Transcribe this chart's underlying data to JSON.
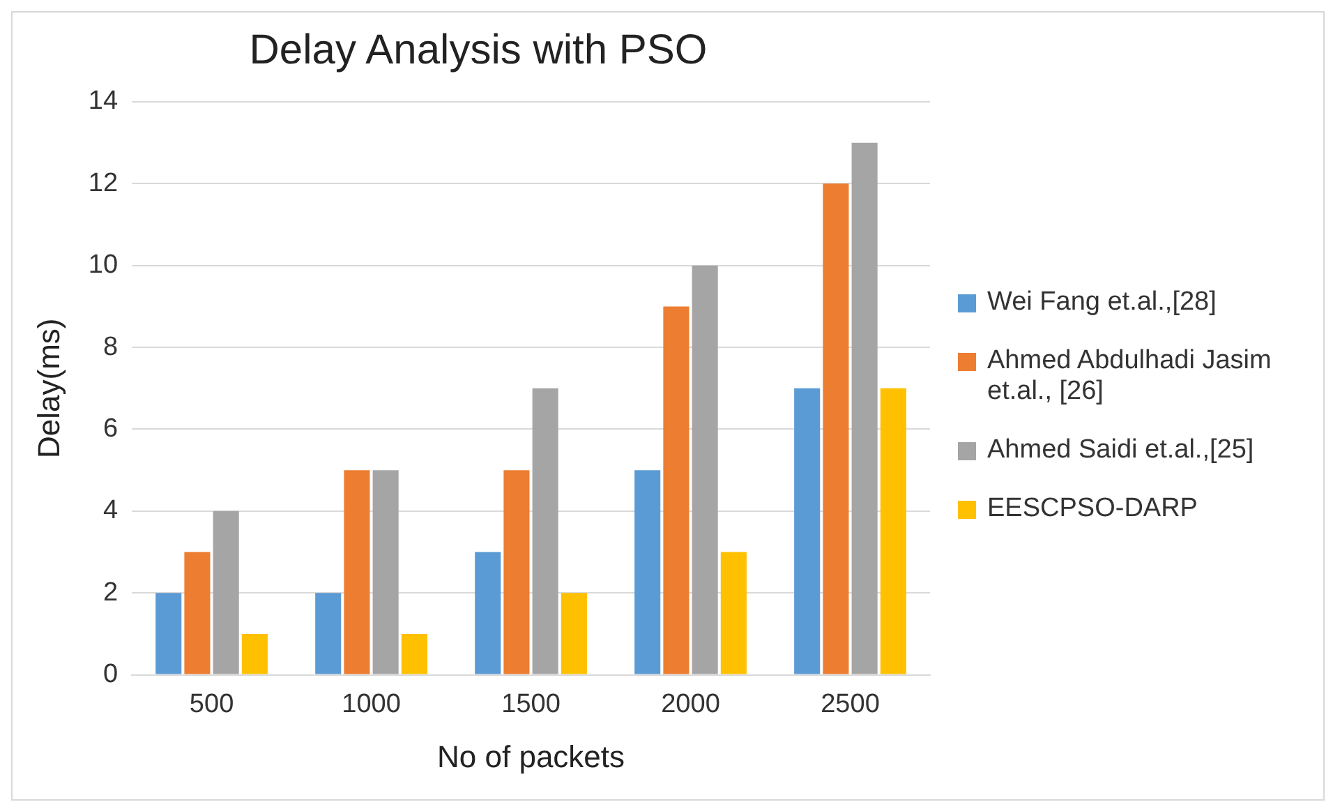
{
  "chart_data": {
    "type": "bar",
    "title": "Delay Analysis with PSO",
    "xlabel": "No of packets",
    "ylabel": "Delay(ms)",
    "categories": [
      "500",
      "1000",
      "1500",
      "2000",
      "2500"
    ],
    "series": [
      {
        "name": "Wei Fang et.al.,[28]",
        "color": "#5b9bd5",
        "values": [
          2,
          2,
          3,
          5,
          7
        ]
      },
      {
        "name": "Ahmed Abdulhadi Jasim et.al., [26]",
        "color": "#ed7d31",
        "values": [
          3,
          5,
          5,
          9,
          12
        ]
      },
      {
        "name": "Ahmed Saidi et.al.,[25]",
        "color": "#a5a5a5",
        "values": [
          4,
          5,
          7,
          10,
          13
        ]
      },
      {
        "name": "EESCPSO-DARP",
        "color": "#ffc000",
        "values": [
          1,
          1,
          2,
          3,
          7
        ]
      }
    ],
    "ylim": [
      0,
      14
    ],
    "yticks": [
      0,
      2,
      4,
      6,
      8,
      10,
      12,
      14
    ],
    "grid": "y",
    "legend": "right"
  }
}
